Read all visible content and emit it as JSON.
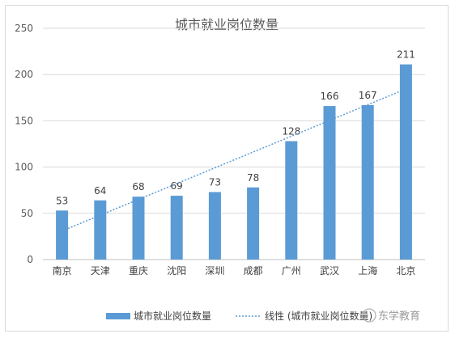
{
  "chart_data": {
    "type": "bar",
    "title": "城市就业岗位数量",
    "categories": [
      "南京",
      "天津",
      "重庆",
      "沈阳",
      "深圳",
      "成都",
      "广州",
      "武汉",
      "上海",
      "北京"
    ],
    "series": [
      {
        "name": "城市就业岗位数量",
        "values": [
          53,
          64,
          68,
          69,
          73,
          78,
          128,
          166,
          167,
          211
        ]
      }
    ],
    "trendline": {
      "type": "linear",
      "label": "线性 (城市就业岗位数量)"
    },
    "ylim": [
      0,
      250
    ],
    "yticks": [
      0,
      50,
      100,
      150,
      200,
      250
    ],
    "grid": true,
    "legend": "bottom",
    "colors": {
      "bar": "#5b9bd5",
      "trend": "#5b9bd5"
    }
  },
  "watermark": "东学教育"
}
